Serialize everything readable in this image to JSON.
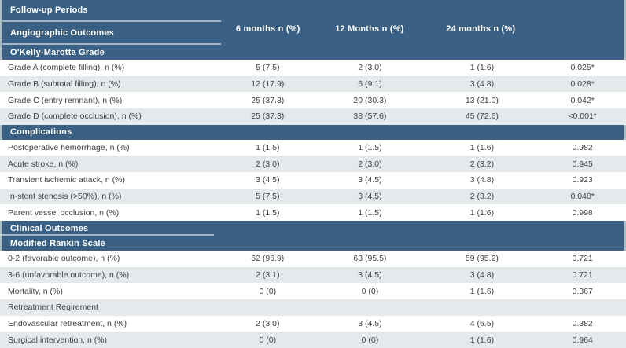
{
  "header": {
    "row1_label": "Follow-up Periods",
    "row2_label": "Angiographic Outcomes",
    "columns": [
      "6 months n (%)",
      "12 Months n (%)",
      "24 months n (%)",
      ""
    ]
  },
  "sections": [
    {
      "title": "O'Kelly-Marotta Grade",
      "divider_below": false,
      "rows": [
        {
          "label": "Grade A (complete filling), n (%)",
          "values": [
            "5 (7.5)",
            "2 (3.0)",
            "1 (1.6)",
            "0.025*"
          ]
        },
        {
          "label": "Grade B (subtotal filling), n (%)",
          "values": [
            "12 (17.9)",
            "6 (9.1)",
            "3 (4.8)",
            "0.028*"
          ]
        },
        {
          "label": "Grade C (entry remnant), n (%)",
          "values": [
            "25 (37.3)",
            "20 (30.3)",
            "13 (21.0)",
            "0.042*"
          ]
        },
        {
          "label": "Grade D (complete occlusion), n (%)",
          "values": [
            "25 (37.3)",
            "38 (57.6)",
            "45 (72.6)",
            "<0.001*"
          ]
        }
      ]
    },
    {
      "title": "Complications",
      "divider_below": false,
      "rows": [
        {
          "label": "Postoperative hemorrhage, n (%)",
          "values": [
            "1 (1.5)",
            "1 (1.5)",
            "1 (1.6)",
            "0.982"
          ]
        },
        {
          "label": "Acute stroke, n (%)",
          "values": [
            "2 (3.0)",
            "2 (3.0)",
            "2 (3.2)",
            "0.945"
          ]
        },
        {
          "label": "Transient ischemic attack, n (%)",
          "values": [
            "3 (4.5)",
            "3 (4.5)",
            "3 (4.8)",
            "0.923"
          ]
        },
        {
          "label": "In-stent stenosis (>50%), n (%)",
          "values": [
            "5 (7.5)",
            "3 (4.5)",
            "2 (3.2)",
            "0.048*"
          ]
        },
        {
          "label": "Parent vessel occlusion, n (%)",
          "values": [
            "1 (1.5)",
            "1 (1.5)",
            "1 (1.6)",
            "0.998"
          ]
        }
      ]
    },
    {
      "title": "Clinical Outcomes",
      "divider_below": true,
      "rows": []
    },
    {
      "title": "Modified Rankin Scale",
      "divider_below": false,
      "rows": [
        {
          "label": "0-2 (favorable outcome), n (%)",
          "values": [
            "62 (96.9)",
            "63 (95.5)",
            "59 (95.2)",
            "0.721"
          ]
        },
        {
          "label": "3-6 (unfavorable outcome), n (%)",
          "values": [
            "2 (3.1)",
            "3 (4.5)",
            "3 (4.8)",
            "0.721"
          ]
        },
        {
          "label": "Mortality, n (%)",
          "values": [
            "0 (0)",
            "0 (0)",
            "1 (1.6)",
            "0.367"
          ]
        },
        {
          "label": "Retreatment Reqirement",
          "values": [
            "",
            "",
            "",
            ""
          ]
        },
        {
          "label": "Endovascular retreatment, n (%)",
          "values": [
            "2 (3.0)",
            "3 (4.5)",
            "4 (6.5)",
            "0.382"
          ]
        },
        {
          "label": "Surgical intervention, n (%)",
          "values": [
            "0 (0)",
            "0 (0)",
            "1 (1.6)",
            "0.964"
          ]
        }
      ]
    }
  ],
  "colors": {
    "section_blue": "#3a6183",
    "edge_light_blue": "#a9bdcb",
    "stripe_gray": "#e4e9ec",
    "body_text": "#3d4247",
    "header_text": "#ffffff"
  }
}
